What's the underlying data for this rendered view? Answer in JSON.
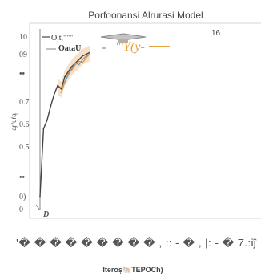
{
  "chart_data": {
    "type": "line",
    "title": "Porfoonansi Alrurasi Model",
    "xlabel": "Iteroș🐚TEPOCh)",
    "ylabel": "ąŗřųŕą",
    "y_tick_labels": [
      "10",
      "09",
      "••",
      "0.7",
      "0.6",
      "0.5",
      "••",
      "0)",
      "0"
    ],
    "x_tick_labels": [
      "D",
      "'� � � � � � � � � , :: - � , |: - � 7.:іĵ"
    ],
    "annotation": "16",
    "legend_placement": "top-left",
    "legend": [
      {
        "label": "O,t,\"\"\"",
        "color": "#444444"
      },
      {
        "label": "OataU,",
        "color": "#9a9a9a"
      }
    ],
    "watermark_text": "\"'Y(y-",
    "ylim": [
      0,
      1.0
    ],
    "grid": false,
    "series": [
      {
        "color": "#444444",
        "x": [
          0,
          1,
          2,
          3,
          4,
          5,
          6,
          7,
          8,
          9,
          10,
          11,
          12,
          13,
          14
        ],
        "y": [
          0.08,
          0.47,
          0.52,
          0.6,
          0.67,
          0.72,
          0.7,
          0.77,
          0.8,
          0.83,
          0.85,
          0.87,
          0.89,
          0.9,
          0.91
        ]
      },
      {
        "color": "#e0913a",
        "x": [
          6,
          7,
          8,
          9,
          10,
          11,
          12,
          13,
          14
        ],
        "y": [
          0.68,
          0.74,
          0.79,
          0.81,
          0.84,
          0.86,
          0.85,
          0.88,
          0.9
        ]
      },
      {
        "color": "#6fa3c9",
        "x": [
          7,
          8,
          9,
          10,
          11,
          12,
          13,
          14
        ],
        "y": [
          0.74,
          0.78,
          0.82,
          0.85,
          0.84,
          0.87,
          0.89,
          0.9
        ]
      }
    ]
  }
}
